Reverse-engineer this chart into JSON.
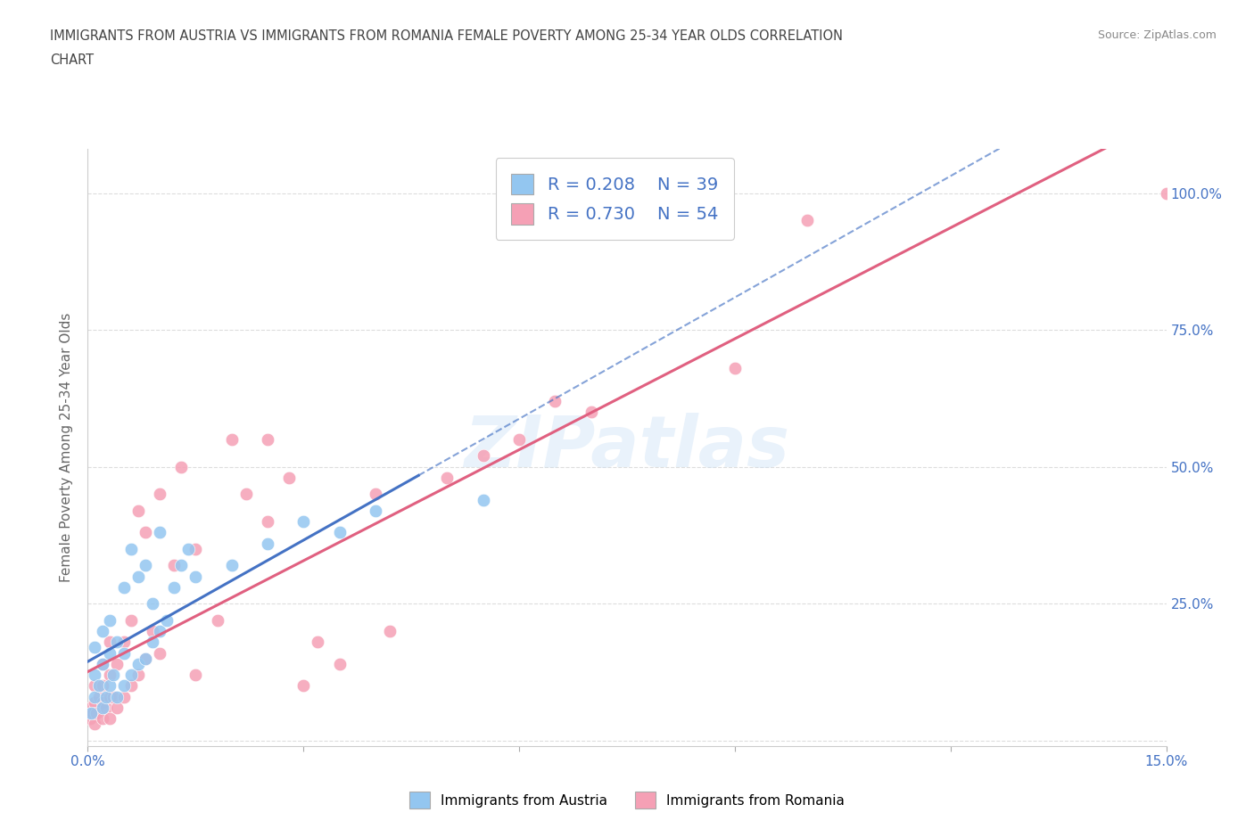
{
  "title_line1": "IMMIGRANTS FROM AUSTRIA VS IMMIGRANTS FROM ROMANIA FEMALE POVERTY AMONG 25-34 YEAR OLDS CORRELATION",
  "title_line2": "CHART",
  "source": "Source: ZipAtlas.com",
  "ylabel": "Female Poverty Among 25-34 Year Olds",
  "xlim": [
    0.0,
    0.15
  ],
  "ylim": [
    -0.01,
    1.08
  ],
  "ytick_positions": [
    0.0,
    0.25,
    0.5,
    0.75,
    1.0
  ],
  "yticklabels_right": [
    "",
    "25.0%",
    "50.0%",
    "75.0%",
    "100.0%"
  ],
  "austria_R": 0.208,
  "austria_N": 39,
  "romania_R": 0.73,
  "romania_N": 54,
  "austria_color": "#93c6f0",
  "romania_color": "#f5a0b5",
  "austria_line_color": "#4472c4",
  "romania_line_color": "#e06080",
  "austria_scatter_x": [
    0.0005,
    0.001,
    0.001,
    0.001,
    0.0015,
    0.002,
    0.002,
    0.002,
    0.0025,
    0.003,
    0.003,
    0.003,
    0.0035,
    0.004,
    0.004,
    0.005,
    0.005,
    0.005,
    0.006,
    0.006,
    0.007,
    0.007,
    0.008,
    0.008,
    0.009,
    0.009,
    0.01,
    0.01,
    0.011,
    0.012,
    0.013,
    0.014,
    0.015,
    0.02,
    0.025,
    0.03,
    0.035,
    0.04,
    0.055
  ],
  "austria_scatter_y": [
    0.05,
    0.08,
    0.12,
    0.17,
    0.1,
    0.06,
    0.14,
    0.2,
    0.08,
    0.1,
    0.16,
    0.22,
    0.12,
    0.08,
    0.18,
    0.1,
    0.16,
    0.28,
    0.12,
    0.35,
    0.14,
    0.3,
    0.15,
    0.32,
    0.18,
    0.25,
    0.2,
    0.38,
    0.22,
    0.28,
    0.32,
    0.35,
    0.3,
    0.32,
    0.36,
    0.4,
    0.38,
    0.42,
    0.44
  ],
  "romania_scatter_x": [
    0.0003,
    0.0005,
    0.0007,
    0.001,
    0.001,
    0.001,
    0.0012,
    0.0015,
    0.002,
    0.002,
    0.002,
    0.002,
    0.0025,
    0.003,
    0.003,
    0.003,
    0.003,
    0.0035,
    0.004,
    0.004,
    0.005,
    0.005,
    0.006,
    0.006,
    0.007,
    0.007,
    0.008,
    0.008,
    0.009,
    0.01,
    0.01,
    0.012,
    0.013,
    0.015,
    0.015,
    0.018,
    0.02,
    0.022,
    0.025,
    0.025,
    0.028,
    0.03,
    0.032,
    0.035,
    0.04,
    0.042,
    0.05,
    0.055,
    0.06,
    0.065,
    0.07,
    0.09,
    0.1,
    0.15
  ],
  "romania_scatter_y": [
    0.04,
    0.06,
    0.05,
    0.03,
    0.07,
    0.1,
    0.05,
    0.08,
    0.04,
    0.07,
    0.1,
    0.14,
    0.06,
    0.04,
    0.08,
    0.12,
    0.18,
    0.08,
    0.06,
    0.14,
    0.08,
    0.18,
    0.1,
    0.22,
    0.12,
    0.42,
    0.15,
    0.38,
    0.2,
    0.16,
    0.45,
    0.32,
    0.5,
    0.12,
    0.35,
    0.22,
    0.55,
    0.45,
    0.4,
    0.55,
    0.48,
    0.1,
    0.18,
    0.14,
    0.45,
    0.2,
    0.48,
    0.52,
    0.55,
    0.62,
    0.6,
    0.68,
    0.95,
    1.0
  ]
}
